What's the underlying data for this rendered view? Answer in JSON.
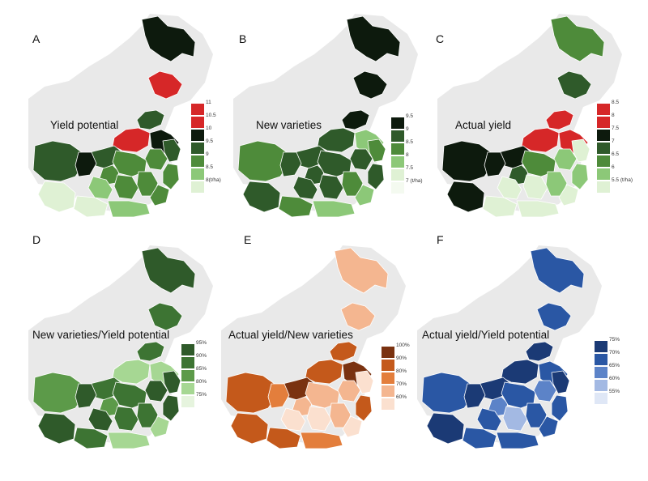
{
  "figure": {
    "background_map_color": "#e9e9e9",
    "panels": [
      {
        "letter": "A",
        "title": "Yield potential",
        "legend": {
          "labels": [
            "11",
            "10.5",
            "10",
            "9.5",
            "9",
            "8.5",
            "8(t/ha)"
          ],
          "colors": [
            "#d62728",
            "#d62728",
            "#0d1a0d",
            "#2f5a2a",
            "#4e8b3a",
            "#8cc878",
            "#dff1d4"
          ]
        },
        "region_colors": {
          "heilongjiang": "#0d1a0d",
          "jilin": "#d62728",
          "liaoning": "#2f5a2a",
          "hebei": "#d62728",
          "shandong": "#0d1a0d",
          "henan": "#2f5a2a",
          "shanxi": "#4e8b3a",
          "sichuan": "#2f5a2a",
          "chongqing": "#0d1a0d",
          "hubei": "#4e8b3a",
          "anhui": "#4e8b3a",
          "jiangsu": "#2f5a2a",
          "zhejiang": "#4e8b3a",
          "hunan": "#4e8b3a",
          "jiangxi": "#4e8b3a",
          "fujian": "#4e8b3a",
          "guizhou": "#8cc878",
          "guangxi": "#dff1d4",
          "guangdong": "#8cc878",
          "yunnan": "#dff1d4"
        }
      },
      {
        "letter": "B",
        "title": "New varieties",
        "legend": {
          "labels": [
            "9.5",
            "9",
            "8.5",
            "8",
            "7.5",
            "7 (t/ha)"
          ],
          "colors": [
            "#0d1a0d",
            "#2f5a2a",
            "#4e8b3a",
            "#8cc878",
            "#dff1d4",
            "#f4faf0"
          ]
        },
        "region_colors": {
          "heilongjiang": "#0d1a0d",
          "jilin": "#0d1a0d",
          "liaoning": "#0d1a0d",
          "hebei": "#2f5a2a",
          "shandong": "#8cc878",
          "henan": "#2f5a2a",
          "shanxi": "#2f5a2a",
          "sichuan": "#4e8b3a",
          "chongqing": "#2f5a2a",
          "hubei": "#2f5a2a",
          "anhui": "#2f5a2a",
          "jiangsu": "#4e8b3a",
          "zhejiang": "#2f5a2a",
          "hunan": "#2f5a2a",
          "jiangxi": "#4e8b3a",
          "fujian": "#8cc878",
          "guizhou": "#2f5a2a",
          "guangxi": "#4e8b3a",
          "guangdong": "#8cc878",
          "yunnan": "#2f5a2a"
        }
      },
      {
        "letter": "C",
        "title": "Actual yield",
        "legend": {
          "labels": [
            "8.5",
            "8",
            "7.5",
            "7",
            "6.5",
            "6",
            "5.5 (t/ha)"
          ],
          "colors": [
            "#d62728",
            "#d62728",
            "#0d1a0d",
            "#2f5a2a",
            "#4e8b3a",
            "#8cc878",
            "#dff1d4"
          ]
        },
        "region_colors": {
          "heilongjiang": "#4e8b3a",
          "jilin": "#2f5a2a",
          "liaoning": "#d62728",
          "hebei": "#d62728",
          "shandong": "#d62728",
          "henan": "#0d1a0d",
          "shanxi": "#2f5a2a",
          "sichuan": "#0d1a0d",
          "chongqing": "#0d1a0d",
          "hubei": "#4e8b3a",
          "anhui": "#8cc878",
          "jiangsu": "#dff1d4",
          "zhejiang": "#8cc878",
          "hunan": "#dff1d4",
          "jiangxi": "#8cc878",
          "fujian": "#dff1d4",
          "guizhou": "#dff1d4",
          "guangxi": "#dff1d4",
          "guangdong": "#dff1d4",
          "yunnan": "#0d1a0d"
        }
      },
      {
        "letter": "D",
        "title": "New varieties/Yield potential",
        "legend": {
          "labels": [
            "95%",
            "90%",
            "85%",
            "80%",
            "75%"
          ],
          "colors": [
            "#2f5a2a",
            "#3d7433",
            "#5c9a49",
            "#a6d793",
            "#e6f4de"
          ]
        },
        "region_colors": {
          "heilongjiang": "#2f5a2a",
          "jilin": "#3d7433",
          "liaoning": "#3d7433",
          "hebei": "#a6d793",
          "shandong": "#a6d793",
          "henan": "#3d7433",
          "shanxi": "#5c9a49",
          "sichuan": "#5c9a49",
          "chongqing": "#2f5a2a",
          "hubei": "#3d7433",
          "anhui": "#2f5a2a",
          "jiangsu": "#2f5a2a",
          "zhejiang": "#2f5a2a",
          "hunan": "#3d7433",
          "jiangxi": "#3d7433",
          "fujian": "#a6d793",
          "guizhou": "#2f5a2a",
          "guangxi": "#3d7433",
          "guangdong": "#a6d793",
          "yunnan": "#2f5a2a"
        }
      },
      {
        "letter": "E",
        "title": "Actual yield/New varieties",
        "legend": {
          "labels": [
            "100%",
            "90%",
            "80%",
            "70%",
            "60%"
          ],
          "colors": [
            "#7a3210",
            "#c4591b",
            "#e37e3c",
            "#f4b690",
            "#fbe0cf"
          ]
        },
        "region_colors": {
          "heilongjiang": "#f4b690",
          "jilin": "#f4b690",
          "liaoning": "#c4591b",
          "hebei": "#c4591b",
          "shandong": "#7a3210",
          "henan": "#7a3210",
          "shanxi": "#f4b690",
          "sichuan": "#c4591b",
          "chongqing": "#e37e3c",
          "hubei": "#f4b690",
          "anhui": "#f4b690",
          "jiangsu": "#fbe0cf",
          "zhejiang": "#c4591b",
          "hunan": "#fbe0cf",
          "jiangxi": "#f4b690",
          "fujian": "#fbe0cf",
          "guizhou": "#fbe0cf",
          "guangxi": "#c4591b",
          "guangdong": "#e37e3c",
          "yunnan": "#c4591b"
        }
      },
      {
        "letter": "F",
        "title": "Actual yield/Yield potential",
        "legend": {
          "labels": [
            "75%",
            "70%",
            "65%",
            "60%",
            "55%"
          ],
          "colors": [
            "#1b3a75",
            "#2a57a4",
            "#5c83c8",
            "#a3b9e3",
            "#dfe7f6"
          ]
        },
        "region_colors": {
          "heilongjiang": "#2a57a4",
          "jilin": "#2a57a4",
          "liaoning": "#1b3a75",
          "hebei": "#1b3a75",
          "shandong": "#2a57a4",
          "henan": "#1b3a75",
          "shanxi": "#5c83c8",
          "sichuan": "#2a57a4",
          "chongqing": "#1b3a75",
          "hubei": "#2a57a4",
          "anhui": "#5c83c8",
          "jiangsu": "#1b3a75",
          "zhejiang": "#2a57a4",
          "hunan": "#a3b9e3",
          "jiangxi": "#2a57a4",
          "fujian": "#2a57a4",
          "guizhou": "#2a57a4",
          "guangxi": "#2a57a4",
          "guangdong": "#2a57a4",
          "yunnan": "#1b3a75"
        }
      }
    ]
  }
}
